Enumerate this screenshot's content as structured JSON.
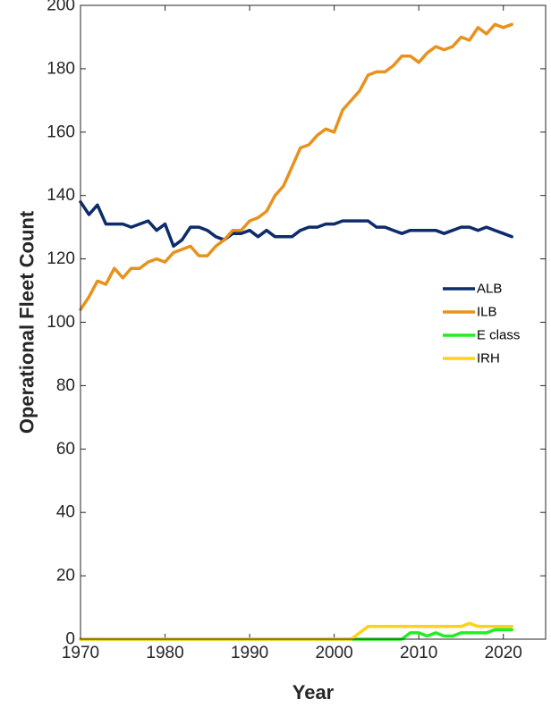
{
  "chart_data": {
    "type": "line",
    "title": "",
    "xlabel": "Year",
    "ylabel": "Operational Fleet Count",
    "xlim": [
      1970,
      2025
    ],
    "ylim": [
      0,
      200
    ],
    "xticks": [
      1970,
      1980,
      1990,
      2000,
      2010,
      2020
    ],
    "yticks": [
      0,
      20,
      40,
      60,
      80,
      100,
      120,
      140,
      160,
      180,
      200
    ],
    "grid": false,
    "legend_position": "right",
    "series": [
      {
        "name": "ALB",
        "color": "#0d2c6b",
        "x": [
          1970,
          1971,
          1972,
          1973,
          1974,
          1975,
          1976,
          1977,
          1978,
          1979,
          1980,
          1981,
          1982,
          1983,
          1984,
          1985,
          1986,
          1987,
          1988,
          1989,
          1990,
          1991,
          1992,
          1993,
          1994,
          1995,
          1996,
          1997,
          1998,
          1999,
          2000,
          2001,
          2002,
          2003,
          2004,
          2005,
          2006,
          2007,
          2008,
          2009,
          2010,
          2011,
          2012,
          2013,
          2014,
          2015,
          2016,
          2017,
          2018,
          2019,
          2020,
          2021
        ],
        "y": [
          138,
          134,
          137,
          131,
          131,
          131,
          130,
          131,
          132,
          129,
          131,
          124,
          126,
          130,
          130,
          129,
          127,
          126,
          128,
          128,
          129,
          127,
          129,
          127,
          127,
          127,
          129,
          130,
          130,
          131,
          131,
          132,
          132,
          132,
          132,
          130,
          130,
          129,
          128,
          129,
          129,
          129,
          129,
          128,
          129,
          130,
          130,
          129,
          130,
          129,
          128,
          127
        ]
      },
      {
        "name": "ILB",
        "color": "#e8921e",
        "x": [
          1970,
          1971,
          1972,
          1973,
          1974,
          1975,
          1976,
          1977,
          1978,
          1979,
          1980,
          1981,
          1982,
          1983,
          1984,
          1985,
          1986,
          1987,
          1988,
          1989,
          1990,
          1991,
          1992,
          1993,
          1994,
          1995,
          1996,
          1997,
          1998,
          1999,
          2000,
          2001,
          2002,
          2003,
          2004,
          2005,
          2006,
          2007,
          2008,
          2009,
          2010,
          2011,
          2012,
          2013,
          2014,
          2015,
          2016,
          2017,
          2018,
          2019,
          2020,
          2021
        ],
        "y": [
          104,
          108,
          113,
          112,
          117,
          114,
          117,
          117,
          119,
          120,
          119,
          122,
          123,
          124,
          121,
          121,
          124,
          126,
          129,
          129,
          132,
          133,
          135,
          140,
          143,
          149,
          155,
          156,
          159,
          161,
          160,
          167,
          170,
          173,
          178,
          179,
          179,
          181,
          184,
          184,
          182,
          185,
          187,
          186,
          187,
          190,
          189,
          193,
          191,
          194,
          193,
          194
        ]
      },
      {
        "name": "E class",
        "color": "#22ee22",
        "x": [
          1970,
          2002,
          2003,
          2004,
          2005,
          2006,
          2007,
          2008,
          2009,
          2010,
          2011,
          2012,
          2013,
          2014,
          2015,
          2016,
          2017,
          2018,
          2019,
          2020,
          2021
        ],
        "y": [
          0,
          0,
          0,
          0,
          0,
          0,
          0,
          0,
          2,
          2,
          1,
          2,
          1,
          1,
          2,
          2,
          2,
          2,
          3,
          3,
          3
        ]
      },
      {
        "name": "IRH",
        "color": "#ffd11a",
        "x": [
          1970,
          2002,
          2003,
          2004,
          2005,
          2006,
          2007,
          2008,
          2009,
          2010,
          2011,
          2012,
          2013,
          2014,
          2015,
          2016,
          2017,
          2018,
          2019,
          2020,
          2021
        ],
        "y": [
          0,
          0,
          2,
          4,
          4,
          4,
          4,
          4,
          4,
          4,
          4,
          4,
          4,
          4,
          4,
          5,
          4,
          4,
          4,
          4,
          4
        ]
      }
    ]
  }
}
